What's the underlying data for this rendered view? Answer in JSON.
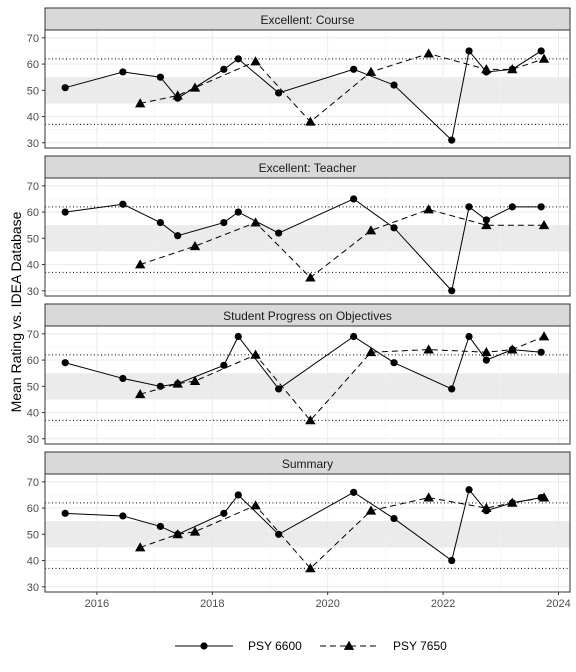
{
  "chart_data": {
    "type": "line",
    "ylabel": "Mean Rating vs. IDEA Database",
    "xlabel": "",
    "xlim": [
      2015.1,
      2024.2
    ],
    "ylim": [
      28,
      73
    ],
    "x_ticks": [
      2016,
      2018,
      2020,
      2022,
      2024
    ],
    "x_tick_labels": [
      "2016",
      "2018",
      "2020",
      "2022",
      "2024"
    ],
    "y_ticks": [
      30,
      40,
      50,
      60,
      70
    ],
    "y_tick_labels": [
      "30",
      "40",
      "50",
      "60",
      "70"
    ],
    "reference_lines": [
      37,
      62
    ],
    "average_band": [
      45,
      55
    ],
    "band_color": "#ebebeb",
    "grid": true,
    "legend_position": "bottom",
    "legend": [
      {
        "label": "PSY 6600",
        "marker": "circle",
        "linestyle": "solid",
        "color": "#000000"
      },
      {
        "label": "PSY 7650",
        "marker": "triangle",
        "linestyle": "dashed",
        "color": "#000000"
      }
    ],
    "panels": [
      {
        "title": "Excellent: Course",
        "series": [
          {
            "name": "PSY 6600",
            "x": [
              2015.45,
              2016.45,
              2017.1,
              2017.4,
              2018.2,
              2018.45,
              2019.15,
              2020.45,
              2021.15,
              2022.15,
              2022.45,
              2022.75,
              2023.2,
              2023.7
            ],
            "y": [
              51,
              57,
              55,
              47,
              58,
              62,
              49,
              58,
              52,
              31,
              65,
              57,
              58,
              65
            ]
          },
          {
            "name": "PSY 7650",
            "x": [
              2016.75,
              2017.4,
              2017.7,
              2018.75,
              2019.7,
              2020.75,
              2021.75,
              2022.75,
              2023.2,
              2023.75
            ],
            "y": [
              45,
              48,
              51,
              61,
              38,
              57,
              64,
              58,
              58,
              62
            ]
          }
        ]
      },
      {
        "title": "Excellent: Teacher",
        "series": [
          {
            "name": "PSY 6600",
            "x": [
              2015.45,
              2016.45,
              2017.1,
              2017.4,
              2018.2,
              2018.45,
              2019.15,
              2020.45,
              2021.15,
              2022.15,
              2022.45,
              2022.75,
              2023.2,
              2023.7
            ],
            "y": [
              60,
              63,
              56,
              51,
              56,
              60,
              52,
              65,
              54,
              30,
              62,
              57,
              62,
              62
            ]
          },
          {
            "name": "PSY 7650",
            "x": [
              2016.75,
              2017.7,
              2018.75,
              2019.7,
              2020.75,
              2021.75,
              2022.75,
              2023.75
            ],
            "y": [
              40,
              47,
              56,
              35,
              53,
              61,
              55,
              55
            ]
          }
        ]
      },
      {
        "title": "Student Progress on Objectives",
        "series": [
          {
            "name": "PSY 6600",
            "x": [
              2015.45,
              2016.45,
              2017.1,
              2017.4,
              2018.2,
              2018.45,
              2019.15,
              2020.45,
              2021.15,
              2022.15,
              2022.45,
              2022.75,
              2023.2,
              2023.7
            ],
            "y": [
              59,
              53,
              50,
              51,
              58,
              69,
              49,
              69,
              59,
              49,
              69,
              60,
              64,
              63
            ]
          },
          {
            "name": "PSY 7650",
            "x": [
              2016.75,
              2017.4,
              2017.7,
              2018.75,
              2019.7,
              2020.75,
              2021.75,
              2022.75,
              2023.2,
              2023.75
            ],
            "y": [
              47,
              51,
              52,
              62,
              37,
              63,
              64,
              63,
              64,
              69
            ]
          }
        ]
      },
      {
        "title": "Summary",
        "series": [
          {
            "name": "PSY 6600",
            "x": [
              2015.45,
              2016.45,
              2017.1,
              2017.4,
              2018.2,
              2018.45,
              2019.15,
              2020.45,
              2021.15,
              2022.15,
              2022.45,
              2022.75,
              2023.2,
              2023.7
            ],
            "y": [
              58,
              57,
              53,
              50,
              58,
              65,
              50,
              66,
              56,
              40,
              67,
              59,
              62,
              64
            ]
          },
          {
            "name": "PSY 7650",
            "x": [
              2016.75,
              2017.4,
              2017.7,
              2018.75,
              2019.7,
              2020.75,
              2021.75,
              2022.75,
              2023.2,
              2023.75
            ],
            "y": [
              45,
              50,
              51,
              61,
              37,
              59,
              64,
              60,
              62,
              64
            ]
          }
        ]
      }
    ]
  }
}
